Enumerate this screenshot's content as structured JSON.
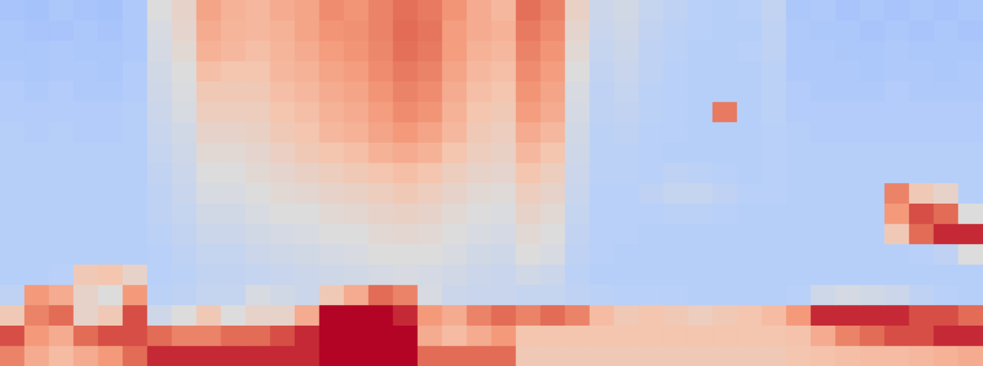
{
  "chart_data": {
    "type": "heatmap",
    "color": "coolwarm",
    "value_range": [
      0,
      1
    ],
    "tick_labels": false,
    "grid": false,
    "cells": [
      [
        0.33,
        0.32,
        0.34,
        0.33,
        0.32,
        0.35,
        0.5,
        0.55,
        0.72,
        0.68,
        0.66,
        0.7,
        0.72,
        0.78,
        0.76,
        0.8,
        0.84,
        0.82,
        0.76,
        0.7,
        0.66,
        0.84,
        0.8,
        0.56,
        0.44,
        0.46,
        0.42,
        0.4,
        0.38,
        0.37,
        0.38,
        0.41,
        0.34,
        0.35,
        0.33,
        0.34,
        0.33,
        0.34,
        0.33,
        0.34
      ],
      [
        0.34,
        0.33,
        0.33,
        0.34,
        0.33,
        0.35,
        0.48,
        0.54,
        0.7,
        0.67,
        0.66,
        0.68,
        0.72,
        0.76,
        0.77,
        0.8,
        0.85,
        0.83,
        0.74,
        0.7,
        0.68,
        0.82,
        0.78,
        0.54,
        0.43,
        0.45,
        0.41,
        0.39,
        0.38,
        0.37,
        0.37,
        0.4,
        0.35,
        0.34,
        0.34,
        0.33,
        0.34,
        0.33,
        0.34,
        0.33
      ],
      [
        0.34,
        0.34,
        0.35,
        0.34,
        0.34,
        0.35,
        0.47,
        0.52,
        0.68,
        0.66,
        0.64,
        0.67,
        0.7,
        0.74,
        0.76,
        0.79,
        0.84,
        0.82,
        0.74,
        0.68,
        0.66,
        0.8,
        0.76,
        0.52,
        0.42,
        0.44,
        0.4,
        0.39,
        0.37,
        0.37,
        0.38,
        0.4,
        0.35,
        0.35,
        0.34,
        0.34,
        0.35,
        0.34,
        0.34,
        0.34
      ],
      [
        0.35,
        0.34,
        0.35,
        0.35,
        0.34,
        0.36,
        0.46,
        0.5,
        0.64,
        0.62,
        0.62,
        0.66,
        0.68,
        0.72,
        0.74,
        0.78,
        0.82,
        0.8,
        0.72,
        0.66,
        0.64,
        0.78,
        0.74,
        0.5,
        0.41,
        0.43,
        0.4,
        0.38,
        0.37,
        0.37,
        0.37,
        0.39,
        0.35,
        0.35,
        0.35,
        0.34,
        0.35,
        0.35,
        0.34,
        0.35
      ],
      [
        0.36,
        0.35,
        0.36,
        0.35,
        0.35,
        0.36,
        0.45,
        0.49,
        0.6,
        0.6,
        0.6,
        0.64,
        0.66,
        0.7,
        0.72,
        0.76,
        0.8,
        0.78,
        0.7,
        0.64,
        0.62,
        0.76,
        0.72,
        0.48,
        0.4,
        0.42,
        0.39,
        0.38,
        0.37,
        0.37,
        0.37,
        0.39,
        0.36,
        0.35,
        0.35,
        0.35,
        0.36,
        0.35,
        0.35,
        0.35
      ],
      [
        0.36,
        0.36,
        0.36,
        0.36,
        0.36,
        0.37,
        0.44,
        0.48,
        0.58,
        0.58,
        0.58,
        0.62,
        0.64,
        0.68,
        0.7,
        0.74,
        0.78,
        0.76,
        0.68,
        0.62,
        0.6,
        0.74,
        0.7,
        0.47,
        0.4,
        0.41,
        0.39,
        0.38,
        0.37,
        0.82,
        0.37,
        0.39,
        0.36,
        0.36,
        0.36,
        0.36,
        0.36,
        0.36,
        0.36,
        0.36
      ],
      [
        0.37,
        0.36,
        0.37,
        0.36,
        0.36,
        0.37,
        0.43,
        0.46,
        0.55,
        0.55,
        0.56,
        0.6,
        0.62,
        0.66,
        0.68,
        0.72,
        0.75,
        0.72,
        0.66,
        0.6,
        0.58,
        0.7,
        0.66,
        0.46,
        0.39,
        0.4,
        0.38,
        0.38,
        0.37,
        0.37,
        0.37,
        0.38,
        0.37,
        0.36,
        0.36,
        0.36,
        0.36,
        0.36,
        0.36,
        0.36
      ],
      [
        0.37,
        0.37,
        0.37,
        0.37,
        0.37,
        0.37,
        0.42,
        0.45,
        0.52,
        0.52,
        0.54,
        0.57,
        0.6,
        0.62,
        0.64,
        0.68,
        0.7,
        0.68,
        0.62,
        0.58,
        0.56,
        0.66,
        0.62,
        0.45,
        0.39,
        0.39,
        0.38,
        0.37,
        0.37,
        0.37,
        0.37,
        0.38,
        0.37,
        0.37,
        0.37,
        0.37,
        0.37,
        0.37,
        0.37,
        0.37
      ],
      [
        0.37,
        0.37,
        0.37,
        0.37,
        0.37,
        0.37,
        0.41,
        0.44,
        0.5,
        0.5,
        0.52,
        0.54,
        0.56,
        0.58,
        0.6,
        0.62,
        0.64,
        0.62,
        0.58,
        0.55,
        0.54,
        0.62,
        0.58,
        0.44,
        0.39,
        0.39,
        0.38,
        0.4,
        0.39,
        0.38,
        0.37,
        0.38,
        0.37,
        0.37,
        0.37,
        0.37,
        0.37,
        0.37,
        0.37,
        0.37
      ],
      [
        0.37,
        0.37,
        0.37,
        0.37,
        0.37,
        0.37,
        0.4,
        0.43,
        0.48,
        0.48,
        0.5,
        0.52,
        0.53,
        0.55,
        0.56,
        0.58,
        0.6,
        0.58,
        0.55,
        0.52,
        0.51,
        0.58,
        0.55,
        0.43,
        0.38,
        0.38,
        0.4,
        0.42,
        0.42,
        0.4,
        0.38,
        0.38,
        0.37,
        0.37,
        0.37,
        0.37,
        0.8,
        0.6,
        0.55,
        0.37
      ],
      [
        0.37,
        0.37,
        0.37,
        0.37,
        0.37,
        0.37,
        0.4,
        0.42,
        0.46,
        0.46,
        0.48,
        0.5,
        0.5,
        0.52,
        0.53,
        0.55,
        0.56,
        0.55,
        0.52,
        0.5,
        0.49,
        0.55,
        0.52,
        0.42,
        0.38,
        0.38,
        0.38,
        0.39,
        0.39,
        0.38,
        0.37,
        0.37,
        0.37,
        0.37,
        0.37,
        0.37,
        0.75,
        0.9,
        0.85,
        0.5
      ],
      [
        0.37,
        0.37,
        0.37,
        0.37,
        0.37,
        0.37,
        0.39,
        0.41,
        0.44,
        0.44,
        0.46,
        0.47,
        0.48,
        0.5,
        0.5,
        0.52,
        0.53,
        0.52,
        0.5,
        0.48,
        0.47,
        0.52,
        0.5,
        0.41,
        0.38,
        0.38,
        0.37,
        0.37,
        0.37,
        0.37,
        0.37,
        0.37,
        0.37,
        0.37,
        0.37,
        0.37,
        0.6,
        0.85,
        0.95,
        0.95
      ],
      [
        0.37,
        0.37,
        0.37,
        0.37,
        0.37,
        0.37,
        0.38,
        0.4,
        0.42,
        0.42,
        0.44,
        0.45,
        0.46,
        0.47,
        0.48,
        0.5,
        0.5,
        0.5,
        0.48,
        0.46,
        0.45,
        0.5,
        0.48,
        0.4,
        0.38,
        0.37,
        0.37,
        0.37,
        0.37,
        0.37,
        0.37,
        0.37,
        0.37,
        0.37,
        0.37,
        0.37,
        0.37,
        0.38,
        0.4,
        0.5
      ],
      [
        0.37,
        0.37,
        0.38,
        0.6,
        0.62,
        0.55,
        0.38,
        0.39,
        0.41,
        0.41,
        0.42,
        0.43,
        0.44,
        0.45,
        0.46,
        0.47,
        0.48,
        0.47,
        0.46,
        0.44,
        0.43,
        0.46,
        0.44,
        0.39,
        0.37,
        0.37,
        0.37,
        0.37,
        0.37,
        0.37,
        0.37,
        0.37,
        0.37,
        0.37,
        0.37,
        0.37,
        0.37,
        0.37,
        0.37,
        0.37
      ],
      [
        0.4,
        0.75,
        0.7,
        0.55,
        0.5,
        0.75,
        0.39,
        0.4,
        0.42,
        0.42,
        0.48,
        0.46,
        0.44,
        0.6,
        0.7,
        0.85,
        0.8,
        0.48,
        0.44,
        0.43,
        0.43,
        0.42,
        0.42,
        0.4,
        0.39,
        0.38,
        0.38,
        0.38,
        0.37,
        0.37,
        0.37,
        0.37,
        0.38,
        0.45,
        0.47,
        0.46,
        0.44,
        0.4,
        0.38,
        0.37
      ],
      [
        0.6,
        0.8,
        0.85,
        0.55,
        0.6,
        0.9,
        0.45,
        0.5,
        0.6,
        0.5,
        0.55,
        0.55,
        0.7,
        1,
        1,
        1,
        0.95,
        0.75,
        0.7,
        0.8,
        0.85,
        0.8,
        0.85,
        0.8,
        0.65,
        0.6,
        0.62,
        0.6,
        0.58,
        0.6,
        0.62,
        0.65,
        0.75,
        0.95,
        0.95,
        0.95,
        0.95,
        0.9,
        0.9,
        0.85
      ],
      [
        0.9,
        0.75,
        0.7,
        0.85,
        0.9,
        0.9,
        0.85,
        0.8,
        0.8,
        0.85,
        0.85,
        0.9,
        0.95,
        1,
        1,
        1,
        1,
        0.7,
        0.65,
        0.7,
        0.75,
        0.62,
        0.62,
        0.62,
        0.62,
        0.62,
        0.62,
        0.62,
        0.62,
        0.62,
        0.62,
        0.62,
        0.63,
        0.7,
        0.8,
        0.85,
        0.9,
        0.9,
        0.95,
        0.95
      ],
      [
        0.8,
        0.7,
        0.65,
        0.7,
        0.75,
        0.85,
        0.95,
        0.95,
        0.95,
        0.95,
        0.95,
        0.95,
        0.95,
        1,
        1,
        1,
        1,
        0.85,
        0.85,
        0.85,
        0.85,
        0.6,
        0.6,
        0.6,
        0.6,
        0.6,
        0.6,
        0.6,
        0.6,
        0.6,
        0.6,
        0.6,
        0.62,
        0.63,
        0.64,
        0.65,
        0.65,
        0.66,
        0.68,
        0.7
      ]
    ]
  }
}
